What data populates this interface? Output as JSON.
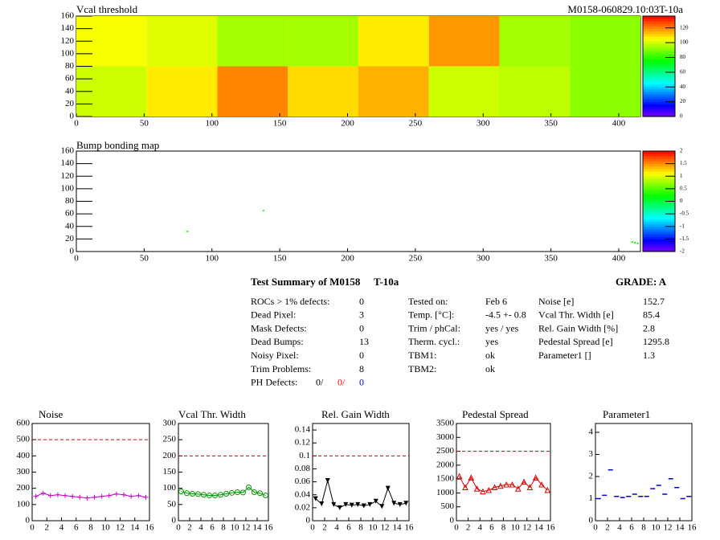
{
  "header": {
    "module": "M0158-060829.10:03T-10a"
  },
  "chart_data": [
    {
      "type": "heatmap",
      "title": "Vcal threshold",
      "xbins": [
        0,
        52,
        104,
        156,
        208,
        260,
        312,
        364,
        416
      ],
      "ybins": [
        0,
        80,
        160
      ],
      "values": [
        [
          100,
          108,
          120,
          110,
          115,
          100,
          98,
          92
        ],
        [
          105,
          102,
          95,
          95,
          108,
          118,
          95,
          92
        ]
      ],
      "xlim": [
        0,
        416
      ],
      "xticks": [
        0,
        50,
        100,
        150,
        200,
        250,
        300,
        350,
        400
      ],
      "ylim": [
        0,
        160
      ],
      "yticks": [
        0,
        20,
        40,
        60,
        80,
        100,
        120,
        140,
        160
      ],
      "zlim": [
        0,
        136
      ],
      "zticks": [
        0,
        20,
        40,
        60,
        80,
        100,
        120
      ]
    },
    {
      "type": "scatter",
      "title": "Bump bonding map",
      "x": [
        82,
        138,
        410,
        412,
        414
      ],
      "y": [
        32,
        65,
        15,
        14,
        13
      ],
      "values": [
        0.3,
        0.3,
        0.3,
        0.3,
        0.3
      ],
      "xlim": [
        0,
        416
      ],
      "xticks": [
        0,
        50,
        100,
        150,
        200,
        250,
        300,
        350,
        400
      ],
      "ylim": [
        0,
        160
      ],
      "yticks": [
        0,
        20,
        40,
        60,
        80,
        100,
        120,
        140,
        160
      ],
      "zlim": [
        -2,
        2
      ],
      "zticks": [
        -2,
        -1.5,
        -1,
        -0.5,
        0,
        0.5,
        1,
        1.5,
        2
      ]
    },
    {
      "type": "line",
      "title": "Noise",
      "color": "#cc00cc",
      "marker": "plus",
      "x": [
        0.5,
        1.5,
        2.5,
        3.5,
        4.5,
        5.5,
        6.5,
        7.5,
        8.5,
        9.5,
        10.5,
        11.5,
        12.5,
        13.5,
        14.5,
        15.5
      ],
      "values": [
        150,
        170,
        155,
        160,
        155,
        150,
        145,
        140,
        145,
        150,
        155,
        165,
        160,
        150,
        155,
        145
      ],
      "reference_line": 500,
      "xlim": [
        0,
        16
      ],
      "xticks": [
        0,
        2,
        4,
        6,
        8,
        10,
        12,
        14,
        16
      ],
      "ylim": [
        0,
        600
      ],
      "yticks": [
        0,
        100,
        200,
        300,
        400,
        500,
        600
      ]
    },
    {
      "type": "line",
      "title": "Vcal Thr. Width",
      "color": "#009900",
      "marker": "circle",
      "x": [
        0.5,
        1.5,
        2.5,
        3.5,
        4.5,
        5.5,
        6.5,
        7.5,
        8.5,
        9.5,
        10.5,
        11.5,
        12.5,
        13.5,
        14.5,
        15.5
      ],
      "values": [
        90,
        85,
        83,
        82,
        80,
        78,
        78,
        80,
        83,
        86,
        88,
        87,
        103,
        88,
        85,
        78
      ],
      "reference_line": 200,
      "xlim": [
        0,
        16
      ],
      "xticks": [
        0,
        2,
        4,
        6,
        8,
        10,
        12,
        14,
        16
      ],
      "ylim": [
        0,
        300
      ],
      "yticks": [
        0,
        50,
        100,
        150,
        200,
        250,
        300
      ]
    },
    {
      "type": "line",
      "title": "Rel. Gain Width",
      "color": "#000000",
      "marker": "triangle-down",
      "x": [
        0.5,
        1.5,
        2.5,
        3.5,
        4.5,
        5.5,
        6.5,
        7.5,
        8.5,
        9.5,
        10.5,
        11.5,
        12.5,
        13.5,
        14.5,
        15.5
      ],
      "values": [
        0.034,
        0.026,
        0.062,
        0.025,
        0.02,
        0.025,
        0.024,
        0.025,
        0.023,
        0.025,
        0.03,
        0.022,
        0.05,
        0.027,
        0.025,
        0.027
      ],
      "reference_line": 0.1,
      "xlim": [
        0,
        16
      ],
      "xticks": [
        0,
        2,
        4,
        6,
        8,
        10,
        12,
        14,
        16
      ],
      "ylim": [
        0,
        0.15
      ],
      "yticks": [
        0,
        0.02,
        0.04,
        0.06,
        0.08,
        0.1,
        0.12,
        0.14
      ]
    },
    {
      "type": "line",
      "title": "Pedestal Spread",
      "color": "#dd0000",
      "marker": "triangle",
      "x": [
        0.5,
        1.5,
        2.5,
        3.5,
        4.5,
        5.5,
        6.5,
        7.5,
        8.5,
        9.5,
        10.5,
        11.5,
        12.5,
        13.5,
        14.5,
        15.5
      ],
      "values": [
        1600,
        1200,
        1550,
        1150,
        1050,
        1100,
        1200,
        1250,
        1300,
        1300,
        1150,
        1400,
        1200,
        1550,
        1300,
        1100
      ],
      "reference_line": 2500,
      "xlim": [
        0,
        16
      ],
      "xticks": [
        0,
        2,
        4,
        6,
        8,
        10,
        12,
        14,
        16
      ],
      "ylim": [
        0,
        3500
      ],
      "yticks": [
        0,
        500,
        1000,
        1500,
        2000,
        2500,
        3000,
        3500
      ]
    },
    {
      "type": "scatter",
      "title": "Parameter1",
      "color": "#0000cc",
      "marker": "hbar",
      "x": [
        0.5,
        1.5,
        2.5,
        3.5,
        4.5,
        5.5,
        6.5,
        7.5,
        8.5,
        9.5,
        10.5,
        11.5,
        12.5,
        13.5,
        14.5,
        15.5
      ],
      "values": [
        1.0,
        1.15,
        2.3,
        1.1,
        1.05,
        1.1,
        1.2,
        1.1,
        1.1,
        1.45,
        1.6,
        1.2,
        1.9,
        1.5,
        1.0,
        1.1
      ],
      "xlim": [
        0,
        16
      ],
      "xticks": [
        0,
        2,
        4,
        6,
        8,
        10,
        12,
        14,
        16
      ],
      "ylim": [
        0,
        4.4
      ],
      "yticks": [
        0,
        1,
        2,
        3,
        4
      ]
    }
  ],
  "summary": {
    "title": "Test Summary of M0158",
    "tag": "T-10a",
    "grade": "GRADE:  A",
    "left": [
      [
        "ROCs > 1% defects:",
        "0"
      ],
      [
        "Dead Pixel:",
        "3"
      ],
      [
        "Mask Defects:",
        "0"
      ],
      [
        "Dead Bumps:",
        "13"
      ],
      [
        "Noisy Pixel:",
        "0"
      ],
      [
        "Trim Problems:",
        "8"
      ]
    ],
    "ph_defects": {
      "label": "PH Defects:",
      "values": [
        "0/",
        "0/",
        "0"
      ]
    },
    "middle": [
      [
        "Tested on:",
        "Feb 6"
      ],
      [
        "Temp. [°C]:",
        "-4.5 +- 0.8"
      ],
      [
        "Trim / phCal:",
        "yes / yes"
      ],
      [
        "Therm. cycl.:",
        "yes"
      ],
      [
        "TBM1:",
        "ok"
      ],
      [
        "TBM2:",
        "ok"
      ]
    ],
    "right": [
      [
        "Noise [e]",
        "152.7"
      ],
      [
        "Vcal Thr. Width [e]",
        "85.4"
      ],
      [
        "Rel. Gain Width [%]",
        "2.8"
      ],
      [
        "Pedestal Spread [e]",
        "1295.8"
      ],
      [
        "Parameter1 []",
        "1.3"
      ]
    ]
  }
}
